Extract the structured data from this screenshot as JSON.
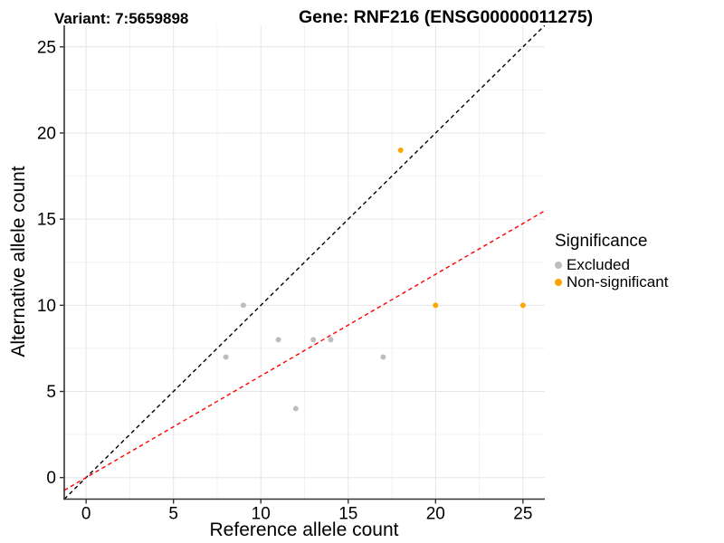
{
  "titles": {
    "left": "Variant: 7:5659898",
    "right": "Gene: RNF216 (ENSG00000011275)"
  },
  "chart_data": {
    "type": "scatter",
    "xlabel": "Reference allele count",
    "ylabel": "Alternative allele count",
    "xlim": [
      -1.25,
      26.25
    ],
    "ylim": [
      -1.25,
      26.25
    ],
    "x_ticks": [
      0,
      5,
      10,
      15,
      20,
      25
    ],
    "y_ticks": [
      0,
      5,
      10,
      15,
      20,
      25
    ],
    "x_minor_ticks": [
      2.5,
      7.5,
      12.5,
      17.5,
      22.5
    ],
    "y_minor_ticks": [
      2.5,
      7.5,
      12.5,
      17.5,
      22.5
    ],
    "grid": true,
    "colors": {
      "excluded": "#bdbdbd",
      "non_significant": "#ffa500",
      "identity_line": "#000000",
      "expected_line": "#ff0000",
      "grid_major": "#e6e6e6",
      "grid_minor": "#f2f2f2",
      "axis": "#333333",
      "text": "#000000"
    },
    "series": [
      {
        "name": "Excluded",
        "color": "#bdbdbd",
        "points": [
          [
            9,
            10
          ],
          [
            8,
            7
          ],
          [
            11,
            8
          ],
          [
            13,
            8
          ],
          [
            14,
            8
          ],
          [
            17,
            7
          ],
          [
            12,
            4
          ]
        ]
      },
      {
        "name": "Non-significant",
        "color": "#ffa500",
        "points": [
          [
            18,
            19
          ],
          [
            20,
            10
          ],
          [
            25,
            10
          ]
        ]
      }
    ],
    "lines": [
      {
        "name": "identity-line",
        "slope": 1,
        "intercept": 0,
        "color": "#000000",
        "style": "dashed"
      },
      {
        "name": "expected-ratio-line",
        "slope": 0.59,
        "intercept": 0,
        "color": "#ff0000",
        "style": "dashed"
      }
    ],
    "legend": {
      "title": "Significance",
      "position": "right",
      "items": [
        {
          "label": "Excluded",
          "color": "#bdbdbd"
        },
        {
          "label": "Non-significant",
          "color": "#ffa500"
        }
      ]
    }
  }
}
